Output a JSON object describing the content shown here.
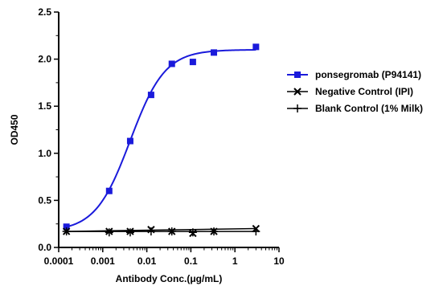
{
  "chart_data": {
    "type": "scatter",
    "title": "",
    "xlabel": "Antibody Conc.(μg/mL)",
    "ylabel": "OD450",
    "x_scale": "log",
    "xlim": [
      0.0001,
      10
    ],
    "ylim": [
      0.0,
      2.5
    ],
    "x_ticks": [
      "0.0001",
      "0.001",
      "0.01",
      "0.1",
      "1",
      "10"
    ],
    "y_ticks": [
      "0.0",
      "0.5",
      "1.0",
      "1.5",
      "2.0",
      "2.5"
    ],
    "grid": false,
    "legend_position": "right",
    "series": [
      {
        "name": "ponsegromab (P94141)",
        "color": "#1a1adb",
        "marker": "square",
        "fit": "sigmoid",
        "x": [
          0.00015,
          0.0014,
          0.0042,
          0.0125,
          0.037,
          0.111,
          0.333,
          3.0
        ],
        "y": [
          0.22,
          0.6,
          1.13,
          1.62,
          1.95,
          1.97,
          2.07,
          2.13
        ]
      },
      {
        "name": "Negative Control (IPI)",
        "color": "#000000",
        "marker": "x",
        "fit": "line",
        "x": [
          0.00015,
          0.0014,
          0.0042,
          0.0125,
          0.037,
          0.111,
          0.333,
          3.0
        ],
        "y": [
          0.17,
          0.17,
          0.17,
          0.19,
          0.17,
          0.15,
          0.17,
          0.2
        ]
      },
      {
        "name": "Blank Control (1% Milk)",
        "color": "#000000",
        "marker": "plus",
        "fit": "line",
        "x": [
          0.00015,
          0.0014,
          0.0042,
          0.0125,
          0.037,
          0.111,
          0.333,
          3.0
        ],
        "y": [
          0.17,
          0.16,
          0.16,
          0.17,
          0.17,
          0.16,
          0.17,
          0.17
        ]
      }
    ]
  }
}
